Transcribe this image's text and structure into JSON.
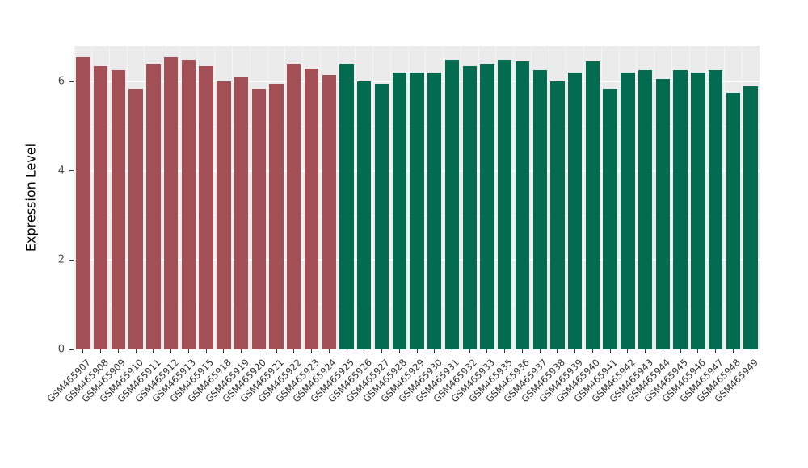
{
  "chart_data": {
    "type": "bar",
    "title": "",
    "xlabel": "",
    "ylabel": "Expression Level",
    "ylim": [
      0,
      6.8
    ],
    "yticks": [
      0,
      2,
      4,
      6
    ],
    "yticks_minor": [
      1,
      3,
      5
    ],
    "grid": "on",
    "legend": "none",
    "panel_background": "#EBEBEB",
    "color_split_index": 15,
    "colors": {
      "group1": "#A25056",
      "group2": "#036B50"
    },
    "categories": [
      "GSM465907",
      "GSM465908",
      "GSM465909",
      "GSM465910",
      "GSM465911",
      "GSM465912",
      "GSM465913",
      "GSM465915",
      "GSM465918",
      "GSM465919",
      "GSM465920",
      "GSM465921",
      "GSM465922",
      "GSM465923",
      "GSM465924",
      "GSM465925",
      "GSM465926",
      "GSM465927",
      "GSM465928",
      "GSM465929",
      "GSM465930",
      "GSM465931",
      "GSM465932",
      "GSM465933",
      "GSM465935",
      "GSM465936",
      "GSM465937",
      "GSM465938",
      "GSM465939",
      "GSM465940",
      "GSM465941",
      "GSM465942",
      "GSM465943",
      "GSM465944",
      "GSM465945",
      "GSM465946",
      "GSM465947",
      "GSM465948",
      "GSM465949"
    ],
    "values": [
      6.55,
      6.35,
      6.25,
      5.85,
      6.4,
      6.55,
      6.5,
      6.35,
      6.0,
      6.1,
      5.85,
      5.95,
      6.4,
      6.3,
      6.15,
      6.4,
      6.0,
      5.95,
      6.2,
      6.2,
      6.2,
      6.5,
      6.35,
      6.4,
      6.5,
      6.45,
      6.25,
      6.0,
      6.2,
      6.45,
      5.85,
      6.2,
      6.25,
      6.05,
      6.25,
      6.2,
      6.25,
      5.75,
      5.9
    ]
  }
}
